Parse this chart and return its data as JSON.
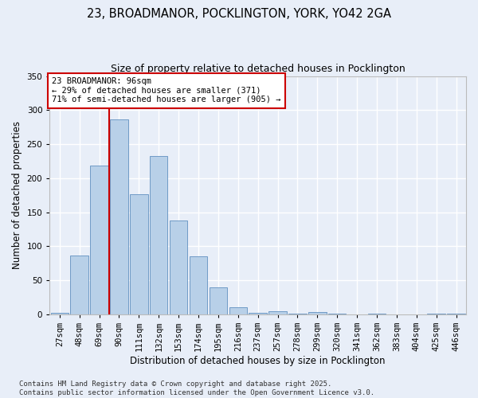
{
  "title_line1": "23, BROADMANOR, POCKLINGTON, YORK, YO42 2GA",
  "title_line2": "Size of property relative to detached houses in Pocklington",
  "xlabel": "Distribution of detached houses by size in Pocklington",
  "ylabel": "Number of detached properties",
  "categories": [
    "27sqm",
    "48sqm",
    "69sqm",
    "90sqm",
    "111sqm",
    "132sqm",
    "153sqm",
    "174sqm",
    "195sqm",
    "216sqm",
    "237sqm",
    "257sqm",
    "278sqm",
    "299sqm",
    "320sqm",
    "341sqm",
    "362sqm",
    "383sqm",
    "404sqm",
    "425sqm",
    "446sqm"
  ],
  "values": [
    2,
    86,
    219,
    286,
    176,
    233,
    138,
    85,
    40,
    11,
    2,
    5,
    1,
    3,
    1,
    0,
    1,
    0,
    0,
    1,
    1
  ],
  "bar_color": "#b8d0e8",
  "bar_edge_color": "#6090c0",
  "background_color": "#e8eef8",
  "grid_color": "#ffffff",
  "vline_color": "#cc0000",
  "vline_x_index": 3,
  "annotation_text": "23 BROADMANOR: 96sqm\n← 29% of detached houses are smaller (371)\n71% of semi-detached houses are larger (905) →",
  "annotation_box_facecolor": "#ffffff",
  "annotation_box_edgecolor": "#cc0000",
  "ylim": [
    0,
    350
  ],
  "yticks": [
    0,
    50,
    100,
    150,
    200,
    250,
    300,
    350
  ],
  "footer_line1": "Contains HM Land Registry data © Crown copyright and database right 2025.",
  "footer_line2": "Contains public sector information licensed under the Open Government Licence v3.0.",
  "title_fontsize": 10.5,
  "subtitle_fontsize": 9,
  "axis_label_fontsize": 8.5,
  "tick_fontsize": 7.5,
  "annotation_fontsize": 7.5,
  "footer_fontsize": 6.5,
  "ylabel_actual": "Number of detached properties"
}
